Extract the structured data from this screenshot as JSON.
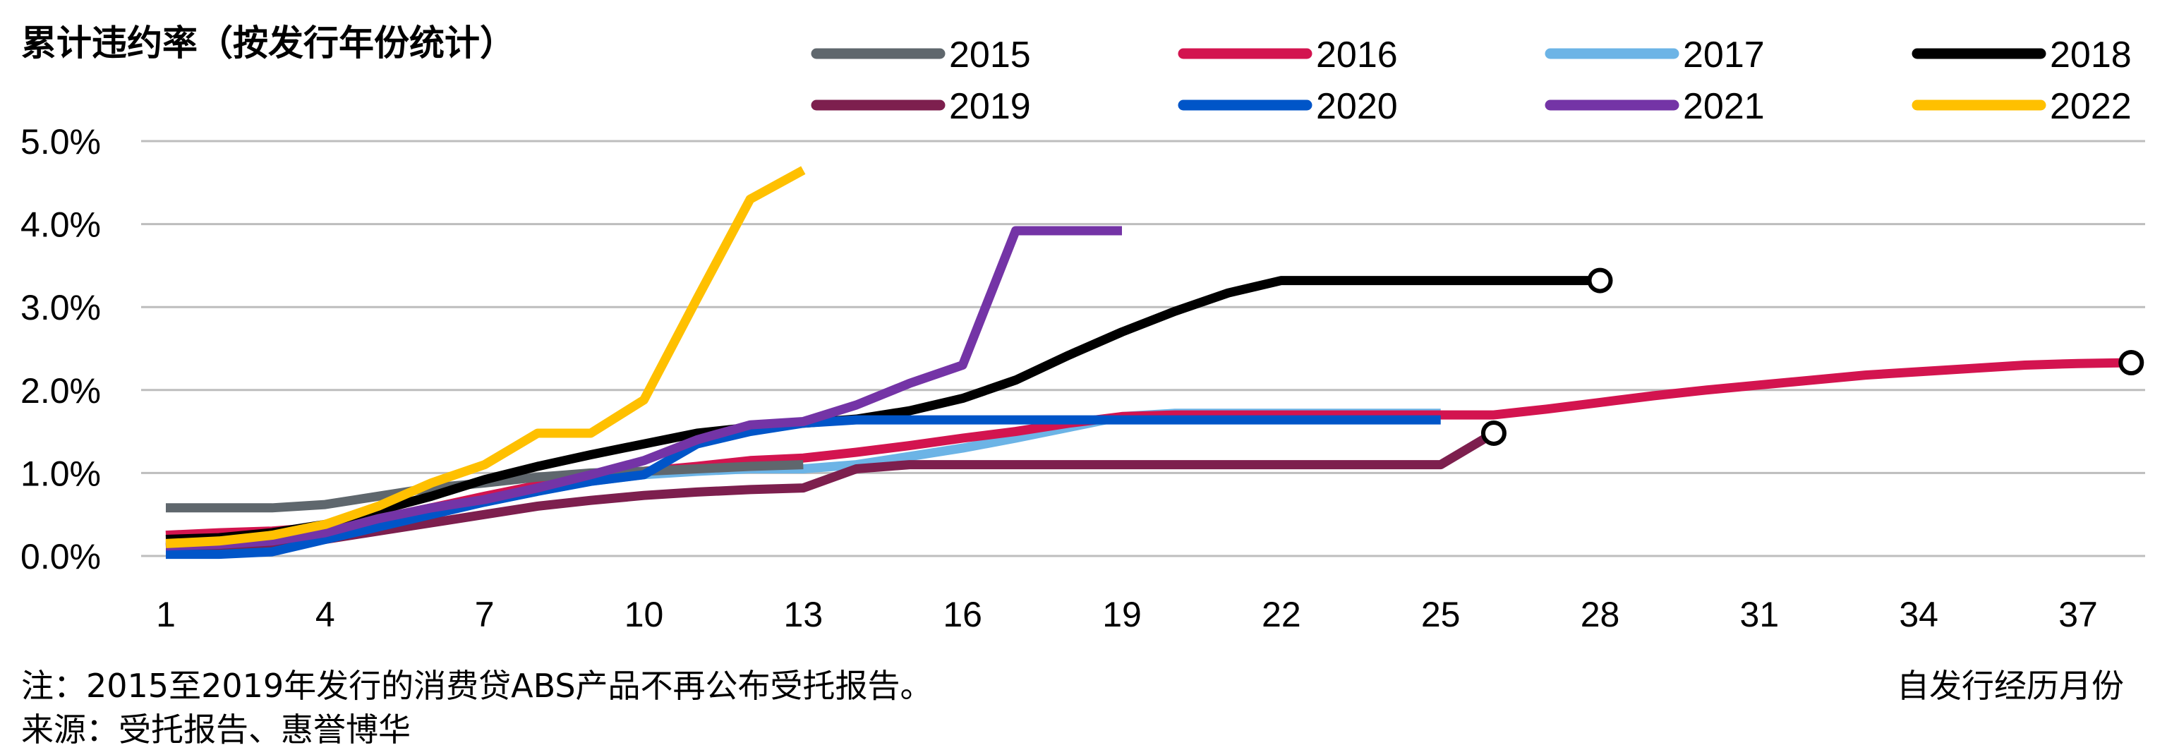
{
  "chart_data": {
    "type": "line",
    "title": "累计违约率（按发行年份统计）",
    "xlabel": "自发行经历月份",
    "ylabel": "",
    "x_ticks": [
      1,
      4,
      7,
      10,
      13,
      16,
      19,
      22,
      25,
      28,
      31,
      34,
      37
    ],
    "xlim": [
      1,
      38
    ],
    "y_ticks": [
      "0.0%",
      "1.0%",
      "2.0%",
      "3.0%",
      "4.0%",
      "5.0%"
    ],
    "ylim": [
      0,
      5
    ],
    "y_unit": "%",
    "grid": "horizontal",
    "legend_position": "top",
    "series": [
      {
        "name": "2015",
        "color": "#5f676d",
        "end_marker": false,
        "points": [
          [
            1,
            0.58
          ],
          [
            3,
            0.58
          ],
          [
            4,
            0.62
          ],
          [
            5,
            0.72
          ],
          [
            6,
            0.82
          ],
          [
            7,
            0.88
          ],
          [
            8,
            0.95
          ],
          [
            9,
            1.0
          ],
          [
            10,
            1.02
          ],
          [
            11,
            1.05
          ],
          [
            12,
            1.08
          ],
          [
            13,
            1.1
          ]
        ]
      },
      {
        "name": "2016",
        "color": "#d3144f",
        "end_marker": true,
        "points": [
          [
            1,
            0.25
          ],
          [
            2,
            0.28
          ],
          [
            3,
            0.3
          ],
          [
            4,
            0.35
          ],
          [
            5,
            0.45
          ],
          [
            6,
            0.58
          ],
          [
            7,
            0.72
          ],
          [
            8,
            0.85
          ],
          [
            9,
            0.95
          ],
          [
            10,
            1.02
          ],
          [
            11,
            1.08
          ],
          [
            12,
            1.15
          ],
          [
            13,
            1.18
          ],
          [
            14,
            1.25
          ],
          [
            15,
            1.33
          ],
          [
            16,
            1.42
          ],
          [
            17,
            1.5
          ],
          [
            18,
            1.6
          ],
          [
            19,
            1.68
          ],
          [
            20,
            1.7
          ],
          [
            25,
            1.7
          ],
          [
            26,
            1.7
          ],
          [
            27,
            1.77
          ],
          [
            28,
            1.85
          ],
          [
            29,
            1.93
          ],
          [
            30,
            2.0
          ],
          [
            31,
            2.06
          ],
          [
            32,
            2.12
          ],
          [
            33,
            2.18
          ],
          [
            34,
            2.22
          ],
          [
            35,
            2.26
          ],
          [
            36,
            2.3
          ],
          [
            37,
            2.32
          ],
          [
            38,
            2.33
          ]
        ]
      },
      {
        "name": "2017",
        "color": "#6cb4e6",
        "end_marker": false,
        "points": [
          [
            1,
            0.1
          ],
          [
            2,
            0.12
          ],
          [
            3,
            0.15
          ],
          [
            4,
            0.25
          ],
          [
            5,
            0.38
          ],
          [
            6,
            0.52
          ],
          [
            7,
            0.65
          ],
          [
            8,
            0.78
          ],
          [
            9,
            0.9
          ],
          [
            10,
            0.98
          ],
          [
            11,
            1.02
          ],
          [
            12,
            1.05
          ],
          [
            13,
            1.05
          ],
          [
            14,
            1.1
          ],
          [
            15,
            1.2
          ],
          [
            16,
            1.3
          ],
          [
            17,
            1.42
          ],
          [
            18,
            1.55
          ],
          [
            19,
            1.68
          ],
          [
            20,
            1.72
          ],
          [
            24,
            1.72
          ],
          [
            25,
            1.72
          ]
        ]
      },
      {
        "name": "2018",
        "color": "#000000",
        "end_marker": true,
        "points": [
          [
            1,
            0.2
          ],
          [
            2,
            0.22
          ],
          [
            3,
            0.28
          ],
          [
            4,
            0.38
          ],
          [
            5,
            0.55
          ],
          [
            6,
            0.72
          ],
          [
            7,
            0.92
          ],
          [
            8,
            1.08
          ],
          [
            9,
            1.22
          ],
          [
            10,
            1.35
          ],
          [
            11,
            1.48
          ],
          [
            12,
            1.55
          ],
          [
            13,
            1.6
          ],
          [
            14,
            1.65
          ],
          [
            15,
            1.75
          ],
          [
            16,
            1.9
          ],
          [
            17,
            2.12
          ],
          [
            18,
            2.42
          ],
          [
            19,
            2.7
          ],
          [
            20,
            2.95
          ],
          [
            21,
            3.17
          ],
          [
            22,
            3.32
          ],
          [
            28,
            3.32
          ]
        ]
      },
      {
        "name": "2019",
        "color": "#7d1f4e",
        "end_marker": true,
        "points": [
          [
            1,
            0.1
          ],
          [
            2,
            0.12
          ],
          [
            3,
            0.15
          ],
          [
            4,
            0.2
          ],
          [
            5,
            0.3
          ],
          [
            6,
            0.4
          ],
          [
            7,
            0.5
          ],
          [
            8,
            0.6
          ],
          [
            9,
            0.67
          ],
          [
            10,
            0.73
          ],
          [
            11,
            0.77
          ],
          [
            12,
            0.8
          ],
          [
            13,
            0.82
          ],
          [
            14,
            1.05
          ],
          [
            15,
            1.1
          ],
          [
            16,
            1.1
          ],
          [
            24,
            1.1
          ],
          [
            25,
            1.1
          ],
          [
            26,
            1.48
          ]
        ]
      },
      {
        "name": "2020",
        "color": "#0055c8",
        "end_marker": false,
        "points": [
          [
            1,
            0.02
          ],
          [
            2,
            0.02
          ],
          [
            3,
            0.05
          ],
          [
            4,
            0.2
          ],
          [
            5,
            0.35
          ],
          [
            6,
            0.5
          ],
          [
            7,
            0.65
          ],
          [
            8,
            0.78
          ],
          [
            9,
            0.9
          ],
          [
            10,
            0.98
          ],
          [
            11,
            1.35
          ],
          [
            12,
            1.5
          ],
          [
            13,
            1.6
          ],
          [
            14,
            1.64
          ],
          [
            25,
            1.64
          ]
        ]
      },
      {
        "name": "2021",
        "color": "#7434a6",
        "end_marker": false,
        "points": [
          [
            1,
            0.12
          ],
          [
            2,
            0.14
          ],
          [
            3,
            0.18
          ],
          [
            4,
            0.28
          ],
          [
            5,
            0.45
          ],
          [
            6,
            0.58
          ],
          [
            7,
            0.68
          ],
          [
            8,
            0.82
          ],
          [
            9,
            0.98
          ],
          [
            10,
            1.15
          ],
          [
            11,
            1.4
          ],
          [
            12,
            1.58
          ],
          [
            13,
            1.62
          ],
          [
            14,
            1.82
          ],
          [
            15,
            2.08
          ],
          [
            16,
            2.3
          ],
          [
            17,
            3.92
          ],
          [
            19,
            3.92
          ]
        ]
      },
      {
        "name": "2022",
        "color": "#ffc000",
        "end_marker": false,
        "points": [
          [
            1,
            0.15
          ],
          [
            2,
            0.18
          ],
          [
            3,
            0.25
          ],
          [
            4,
            0.38
          ],
          [
            5,
            0.6
          ],
          [
            6,
            0.88
          ],
          [
            7,
            1.1
          ],
          [
            8,
            1.48
          ],
          [
            9,
            1.48
          ],
          [
            10,
            1.88
          ],
          [
            11,
            3.1
          ],
          [
            12,
            4.3
          ],
          [
            13,
            4.65
          ]
        ]
      }
    ]
  },
  "notes": {
    "note": "注：2015至2019年发行的消费贷ABS产品不再公布受托报告。",
    "source": "来源：受托报告、惠誉博华"
  }
}
